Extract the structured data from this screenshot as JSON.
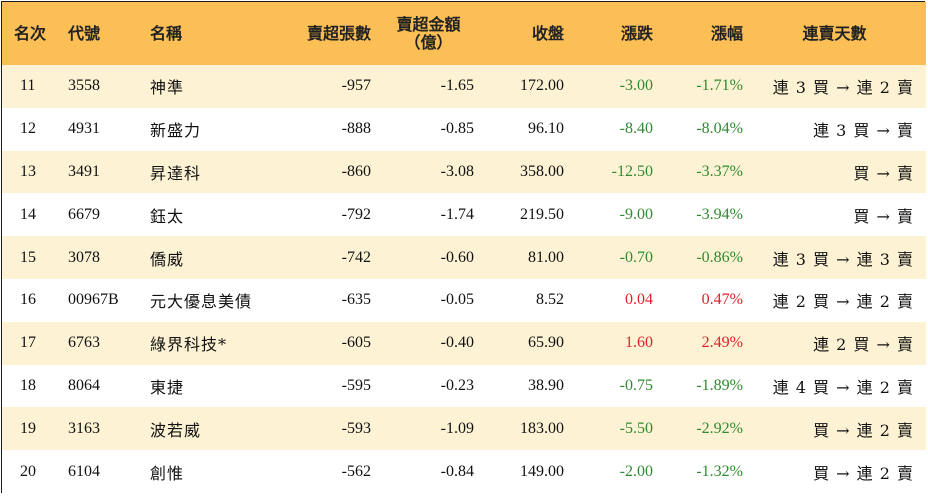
{
  "headers": {
    "rank": "名次",
    "code": "代號",
    "name": "名稱",
    "sell_lots": "賣超張數",
    "sell_amount_line1": "賣超金額",
    "sell_amount_line2": "（億）",
    "close": "收盤",
    "change": "漲跌",
    "change_pct": "漲幅",
    "streak": "連賣天數"
  },
  "rows": [
    {
      "rank": "11",
      "code": "3558",
      "name": "神準",
      "sell_lots": "-957",
      "sell_amount": "-1.65",
      "close": "172.00",
      "change": "-3.00",
      "change_pct": "-1.71%",
      "streak": "連 3 買 → 連 2 賣",
      "direction": "down"
    },
    {
      "rank": "12",
      "code": "4931",
      "name": "新盛力",
      "sell_lots": "-888",
      "sell_amount": "-0.85",
      "close": "96.10",
      "change": "-8.40",
      "change_pct": "-8.04%",
      "streak": "連 3 買 → 賣",
      "direction": "down"
    },
    {
      "rank": "13",
      "code": "3491",
      "name": "昇達科",
      "sell_lots": "-860",
      "sell_amount": "-3.08",
      "close": "358.00",
      "change": "-12.50",
      "change_pct": "-3.37%",
      "streak": "買 → 賣",
      "direction": "down"
    },
    {
      "rank": "14",
      "code": "6679",
      "name": "鈺太",
      "sell_lots": "-792",
      "sell_amount": "-1.74",
      "close": "219.50",
      "change": "-9.00",
      "change_pct": "-3.94%",
      "streak": "買 → 賣",
      "direction": "down"
    },
    {
      "rank": "15",
      "code": "3078",
      "name": "僑威",
      "sell_lots": "-742",
      "sell_amount": "-0.60",
      "close": "81.00",
      "change": "-0.70",
      "change_pct": "-0.86%",
      "streak": "連 3 買 → 連 3 賣",
      "direction": "down"
    },
    {
      "rank": "16",
      "code": "00967B",
      "name": "元大優息美債",
      "sell_lots": "-635",
      "sell_amount": "-0.05",
      "close": "8.52",
      "change": "0.04",
      "change_pct": "0.47%",
      "streak": "連 2 買 → 連 2 賣",
      "direction": "up"
    },
    {
      "rank": "17",
      "code": "6763",
      "name": "綠界科技*",
      "sell_lots": "-605",
      "sell_amount": "-0.40",
      "close": "65.90",
      "change": "1.60",
      "change_pct": "2.49%",
      "streak": "連 2 買 → 賣",
      "direction": "up"
    },
    {
      "rank": "18",
      "code": "8064",
      "name": "東捷",
      "sell_lots": "-595",
      "sell_amount": "-0.23",
      "close": "38.90",
      "change": "-0.75",
      "change_pct": "-1.89%",
      "streak": "連 4 買 → 連 2 賣",
      "direction": "down"
    },
    {
      "rank": "19",
      "code": "3163",
      "name": "波若威",
      "sell_lots": "-593",
      "sell_amount": "-1.09",
      "close": "183.00",
      "change": "-5.50",
      "change_pct": "-2.92%",
      "streak": "買 → 連 2 賣",
      "direction": "down"
    },
    {
      "rank": "20",
      "code": "6104",
      "name": "創惟",
      "sell_lots": "-562",
      "sell_amount": "-0.84",
      "close": "149.00",
      "change": "-2.00",
      "change_pct": "-1.32%",
      "streak": "買 → 連 2 賣",
      "direction": "down"
    }
  ],
  "colors": {
    "header_bg": "#fbbf55",
    "stripe_bg": "#fdf3d4",
    "down": "#2e8b2e",
    "up": "#e0202a"
  }
}
